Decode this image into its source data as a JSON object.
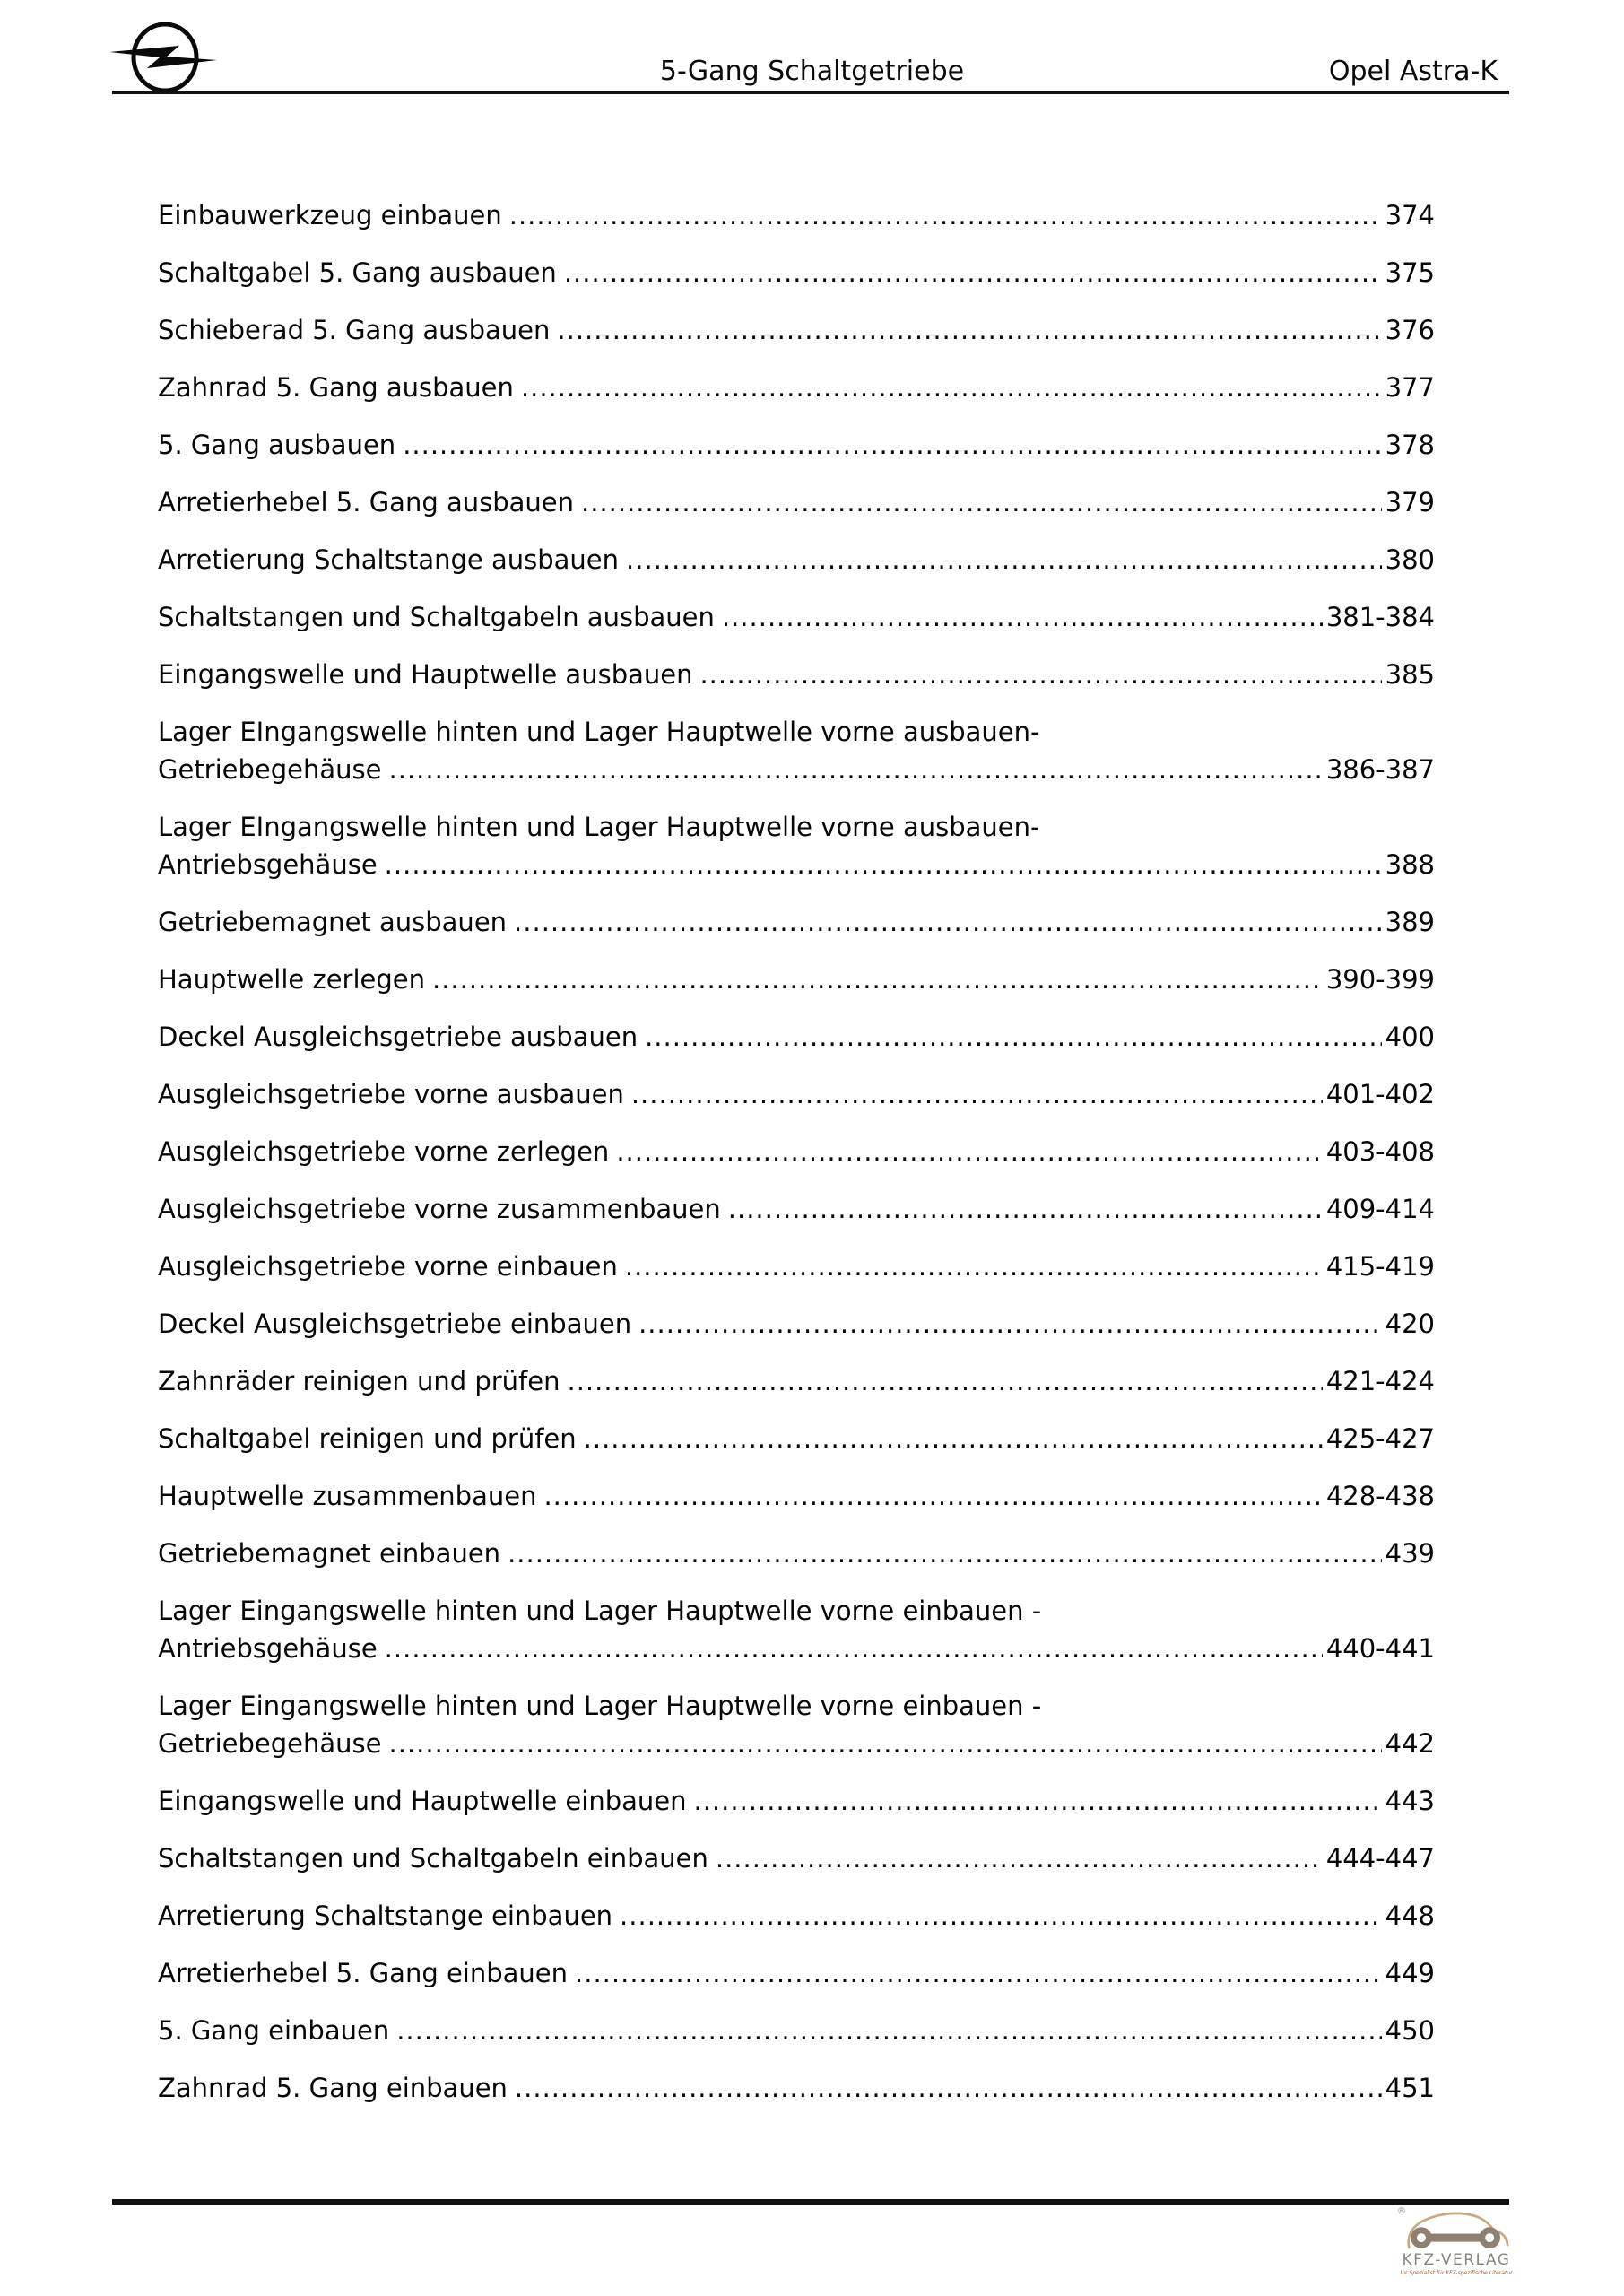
{
  "header": {
    "title": "5-Gang Schaltgetriebe",
    "model": "Opel Astra-K",
    "logo": "opel-blitz-logo"
  },
  "toc": {
    "entries": [
      {
        "lines": [
          "Einbauwerkzeug einbauen"
        ],
        "pages": "374"
      },
      {
        "lines": [
          "Schaltgabel 5. Gang ausbauen"
        ],
        "pages": "375"
      },
      {
        "lines": [
          "Schieberad 5. Gang ausbauen"
        ],
        "pages": "376"
      },
      {
        "lines": [
          "Zahnrad 5. Gang ausbauen"
        ],
        "pages": "377"
      },
      {
        "lines": [
          "5. Gang ausbauen"
        ],
        "pages": "378"
      },
      {
        "lines": [
          "Arretierhebel 5. Gang ausbauen"
        ],
        "pages": "379"
      },
      {
        "lines": [
          "Arretierung Schaltstange ausbauen"
        ],
        "pages": "380"
      },
      {
        "lines": [
          "Schaltstangen und Schaltgabeln ausbauen"
        ],
        "pages": "381-384"
      },
      {
        "lines": [
          "Eingangswelle und Hauptwelle ausbauen"
        ],
        "pages": "385"
      },
      {
        "lines": [
          "Lager EIngangswelle hinten und Lager Hauptwelle vorne ausbauen-",
          "Getriebegehäuse"
        ],
        "pages": "386-387"
      },
      {
        "lines": [
          "Lager EIngangswelle hinten und Lager Hauptwelle vorne ausbauen-",
          "Antriebsgehäuse"
        ],
        "pages": "388"
      },
      {
        "lines": [
          "Getriebemagnet ausbauen"
        ],
        "pages": "389"
      },
      {
        "lines": [
          "Hauptwelle zerlegen"
        ],
        "pages": "390-399"
      },
      {
        "lines": [
          "Deckel Ausgleichsgetriebe ausbauen"
        ],
        "pages": "400"
      },
      {
        "lines": [
          "Ausgleichsgetriebe vorne ausbauen"
        ],
        "pages": "401-402"
      },
      {
        "lines": [
          "Ausgleichsgetriebe vorne zerlegen"
        ],
        "pages": "403-408"
      },
      {
        "lines": [
          "Ausgleichsgetriebe vorne zusammenbauen"
        ],
        "pages": "409-414"
      },
      {
        "lines": [
          "Ausgleichsgetriebe vorne einbauen"
        ],
        "pages": "415-419"
      },
      {
        "lines": [
          "Deckel Ausgleichsgetriebe einbauen"
        ],
        "pages": "420"
      },
      {
        "lines": [
          "Zahnräder reinigen und prüfen"
        ],
        "pages": "421-424"
      },
      {
        "lines": [
          "Schaltgabel reinigen und prüfen"
        ],
        "pages": "425-427"
      },
      {
        "lines": [
          "Hauptwelle zusammenbauen"
        ],
        "pages": "428-438"
      },
      {
        "lines": [
          "Getriebemagnet einbauen"
        ],
        "pages": "439"
      },
      {
        "lines": [
          "Lager Eingangswelle hinten und Lager Hauptwelle vorne einbauen -",
          "Antriebsgehäuse"
        ],
        "pages": "440-441"
      },
      {
        "lines": [
          "Lager Eingangswelle hinten und Lager Hauptwelle vorne einbauen -",
          "Getriebegehäuse"
        ],
        "pages": "442"
      },
      {
        "lines": [
          "Eingangswelle und Hauptwelle einbauen"
        ],
        "pages": "443"
      },
      {
        "lines": [
          "Schaltstangen und Schaltgabeln einbauen"
        ],
        "pages": "444-447"
      },
      {
        "lines": [
          "Arretierung Schaltstange einbauen"
        ],
        "pages": "448"
      },
      {
        "lines": [
          "Arretierhebel 5. Gang einbauen"
        ],
        "pages": "449"
      },
      {
        "lines": [
          "5. Gang einbauen"
        ],
        "pages": "450"
      },
      {
        "lines": [
          "Zahnrad 5. Gang einbauen"
        ],
        "pages": "451"
      }
    ]
  },
  "footer": {
    "publisher": "KFZ-VERLAG",
    "tagline": "Ihr Spezialist für KFZ-spezifische Literatur",
    "registered_mark": "®"
  },
  "colors": {
    "text": "#0a0a0a",
    "rule": "#111111",
    "kfz_car_outline": "#c9a87e",
    "kfz_wrench": "#8e8172",
    "kfz_title": "#8c857b",
    "kfz_tagline": "#925f3d"
  }
}
